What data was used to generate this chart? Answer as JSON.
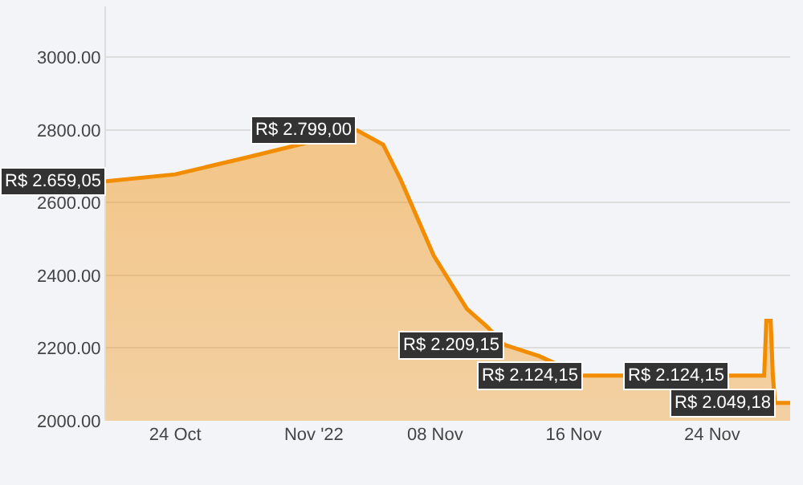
{
  "chart_data": {
    "type": "area",
    "x": [
      "2022-10-20",
      "2022-10-24",
      "2022-10-28",
      "2022-11-03T12:00",
      "2022-11-05",
      "2022-11-06",
      "2022-11-07T22:00",
      "2022-11-09T20:00",
      "2022-11-11",
      "2022-11-12",
      "2022-11-14",
      "2022-11-16T12:00",
      "2022-11-25",
      "2022-11-27",
      "2022-11-27T03:00",
      "2022-11-27T09:00",
      "2022-11-27T12:00",
      "2022-11-27T15:00",
      "2022-11-28T12:00"
    ],
    "series": [
      {
        "color": "#f28c00",
        "values": [
          2659.05,
          2678,
          2723,
          2799,
          2760,
          2665,
          2455,
          2308,
          2259,
          2209.15,
          2178,
          2124.15,
          2124.15,
          2124.15,
          2275,
          2275,
          2124.15,
          2049.18,
          2049.18
        ],
        "value_labels": [
          "R$ 2.659,05",
          null,
          null,
          "R$ 2.799,00",
          null,
          null,
          null,
          null,
          null,
          "R$ 2.209,15",
          null,
          "R$ 2.124,15",
          "R$ 2.124,15",
          null,
          null,
          null,
          null,
          "R$ 2.049,18",
          null
        ]
      }
    ],
    "xlim": [
      "2022-10-20",
      "2022-11-28T12:00"
    ],
    "xticks": [
      {
        "value": "2022-10-24",
        "label": "24 Oct"
      },
      {
        "value": "2022-11-01",
        "label": "Nov '22"
      },
      {
        "value": "2022-11-08",
        "label": "08 Nov"
      },
      {
        "value": "2022-11-16",
        "label": "16 Nov"
      },
      {
        "value": "2022-11-24",
        "label": "24 Nov"
      }
    ],
    "ylim": [
      2000,
      3140
    ],
    "yticks": [
      {
        "value": 2000,
        "label": "2000.00"
      },
      {
        "value": 2200,
        "label": "2200.00"
      },
      {
        "value": 2400,
        "label": "2400.00"
      },
      {
        "value": 2600,
        "label": "2600.00"
      },
      {
        "value": 2800,
        "label": "2800.00"
      },
      {
        "value": 3000,
        "label": "3000.00"
      }
    ],
    "grid": "y",
    "legend": false
  }
}
